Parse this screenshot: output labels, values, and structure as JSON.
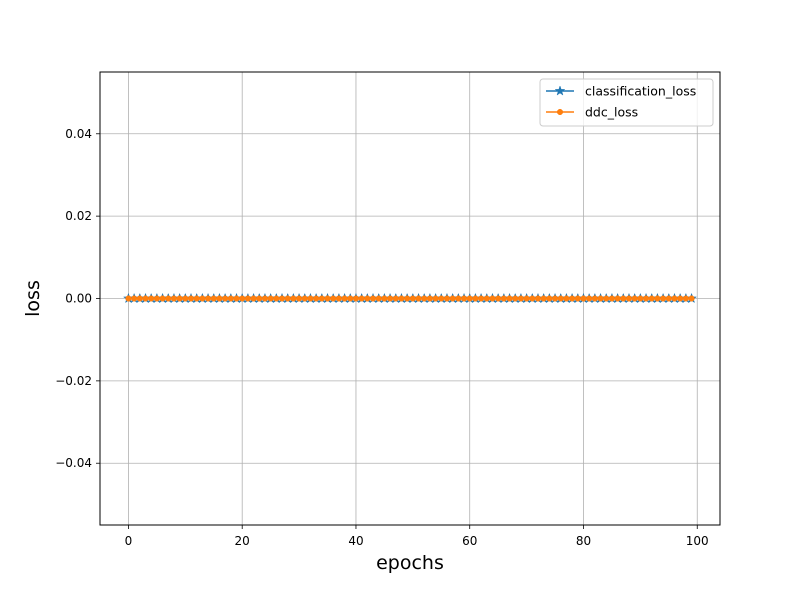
{
  "chart_data": {
    "type": "line",
    "title": "",
    "xlabel": "epochs",
    "ylabel": "loss",
    "xlim": [
      -5,
      104
    ],
    "ylim": [
      -0.055,
      0.055
    ],
    "xticks": [
      0,
      20,
      40,
      60,
      80,
      100
    ],
    "yticks": [
      -0.04,
      -0.02,
      0.0,
      0.02,
      0.04
    ],
    "xtick_labels": [
      "0",
      "20",
      "40",
      "60",
      "80",
      "100"
    ],
    "ytick_labels": [
      "−0.04",
      "−0.02",
      "0.00",
      "0.02",
      "0.04"
    ],
    "grid": true,
    "legend_position": "top-right",
    "x": {
      "start": 0,
      "end": 99,
      "step": 1
    },
    "series": [
      {
        "name": "classification_loss",
        "constant": 0,
        "color": "#1f77b4",
        "marker": "star"
      },
      {
        "name": "ddc_loss",
        "constant": 0,
        "color": "#ff7f0e",
        "marker": "circle"
      }
    ]
  }
}
